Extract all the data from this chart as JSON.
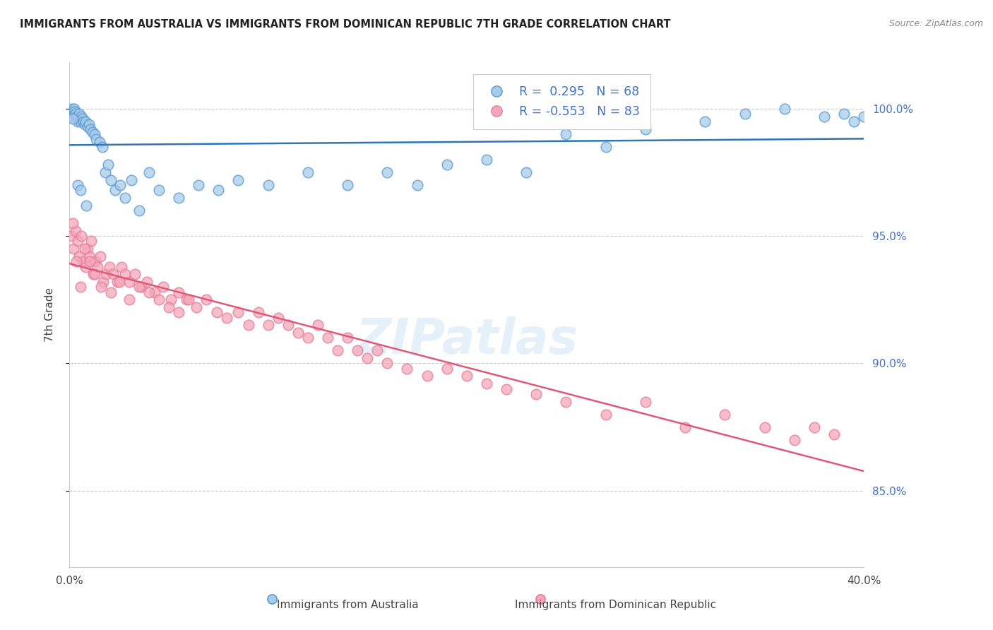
{
  "title": "IMMIGRANTS FROM AUSTRALIA VS IMMIGRANTS FROM DOMINICAN REPUBLIC 7TH GRADE CORRELATION CHART",
  "source": "Source: ZipAtlas.com",
  "ylabel": "7th Grade",
  "x_min": 0.0,
  "x_max": 40.0,
  "y_min": 82.0,
  "y_max": 101.8,
  "y_ticks": [
    85.0,
    90.0,
    95.0,
    100.0
  ],
  "x_ticks": [
    0.0,
    5.0,
    10.0,
    15.0,
    20.0,
    25.0,
    30.0,
    35.0,
    40.0
  ],
  "legend_r_australia": "R =  0.295",
  "legend_n_australia": "N = 68",
  "legend_r_dominican": "R = -0.553",
  "legend_n_dominican": "N = 83",
  "australia_color": "#a8cce8",
  "australia_edge_color": "#5b9bd5",
  "australia_line_color": "#2e75b6",
  "dominican_color": "#f4a7b9",
  "dominican_edge_color": "#e87a9b",
  "dominican_line_color": "#e05878",
  "watermark": "ZIPatlas",
  "australia_x": [
    0.05,
    0.08,
    0.1,
    0.12,
    0.14,
    0.16,
    0.18,
    0.2,
    0.22,
    0.25,
    0.27,
    0.3,
    0.33,
    0.36,
    0.4,
    0.44,
    0.48,
    0.52,
    0.56,
    0.6,
    0.65,
    0.7,
    0.76,
    0.82,
    0.9,
    0.98,
    1.05,
    1.15,
    1.25,
    1.35,
    1.5,
    1.65,
    1.8,
    1.95,
    2.1,
    2.3,
    2.55,
    2.8,
    3.1,
    3.5,
    4.0,
    4.5,
    5.5,
    6.5,
    7.5,
    8.5,
    10.0,
    12.0,
    14.0,
    16.0,
    17.5,
    19.0,
    21.0,
    23.0,
    25.0,
    27.0,
    29.0,
    32.0,
    34.0,
    36.0,
    38.0,
    39.0,
    39.5,
    40.0,
    0.15,
    0.42,
    0.55,
    0.85
  ],
  "australia_y": [
    99.7,
    99.8,
    99.9,
    100.0,
    99.9,
    99.8,
    99.7,
    99.8,
    99.9,
    100.0,
    99.9,
    99.8,
    99.7,
    99.6,
    99.5,
    99.7,
    99.8,
    99.6,
    99.5,
    99.7,
    99.6,
    99.5,
    99.4,
    99.5,
    99.3,
    99.4,
    99.2,
    99.1,
    99.0,
    98.8,
    98.7,
    98.5,
    97.5,
    97.8,
    97.2,
    96.8,
    97.0,
    96.5,
    97.2,
    96.0,
    97.5,
    96.8,
    96.5,
    97.0,
    96.8,
    97.2,
    97.0,
    97.5,
    97.0,
    97.5,
    97.0,
    97.8,
    98.0,
    97.5,
    99.0,
    98.5,
    99.2,
    99.5,
    99.8,
    100.0,
    99.7,
    99.8,
    99.5,
    99.7,
    99.6,
    97.0,
    96.8,
    96.2
  ],
  "dominican_x": [
    0.1,
    0.2,
    0.3,
    0.4,
    0.5,
    0.6,
    0.7,
    0.8,
    0.9,
    1.0,
    1.1,
    1.2,
    1.3,
    1.4,
    1.55,
    1.7,
    1.85,
    2.0,
    2.2,
    2.4,
    2.6,
    2.8,
    3.0,
    3.3,
    3.6,
    3.9,
    4.3,
    4.7,
    5.1,
    5.5,
    5.9,
    6.4,
    6.9,
    7.4,
    7.9,
    8.5,
    9.0,
    9.5,
    10.0,
    10.5,
    11.0,
    11.5,
    12.0,
    12.5,
    13.0,
    13.5,
    14.0,
    14.5,
    15.0,
    15.5,
    16.0,
    17.0,
    18.0,
    19.0,
    20.0,
    21.0,
    22.0,
    23.5,
    25.0,
    27.0,
    29.0,
    31.0,
    33.0,
    35.0,
    36.5,
    37.5,
    38.5,
    0.15,
    0.35,
    0.55,
    0.75,
    1.0,
    1.25,
    1.6,
    2.1,
    2.5,
    3.0,
    3.5,
    4.0,
    4.5,
    5.0,
    5.5,
    6.0
  ],
  "dominican_y": [
    95.0,
    94.5,
    95.2,
    94.8,
    94.2,
    95.0,
    94.0,
    93.8,
    94.5,
    94.2,
    94.8,
    93.5,
    94.0,
    93.8,
    94.2,
    93.2,
    93.5,
    93.8,
    93.5,
    93.2,
    93.8,
    93.5,
    93.2,
    93.5,
    93.0,
    93.2,
    92.8,
    93.0,
    92.5,
    92.8,
    92.5,
    92.2,
    92.5,
    92.0,
    91.8,
    92.0,
    91.5,
    92.0,
    91.5,
    91.8,
    91.5,
    91.2,
    91.0,
    91.5,
    91.0,
    90.5,
    91.0,
    90.5,
    90.2,
    90.5,
    90.0,
    89.8,
    89.5,
    89.8,
    89.5,
    89.2,
    89.0,
    88.8,
    88.5,
    88.0,
    88.5,
    87.5,
    88.0,
    87.5,
    87.0,
    87.5,
    87.2,
    95.5,
    94.0,
    93.0,
    94.5,
    94.0,
    93.5,
    93.0,
    92.8,
    93.2,
    92.5,
    93.0,
    92.8,
    92.5,
    92.2,
    92.0,
    92.5
  ]
}
